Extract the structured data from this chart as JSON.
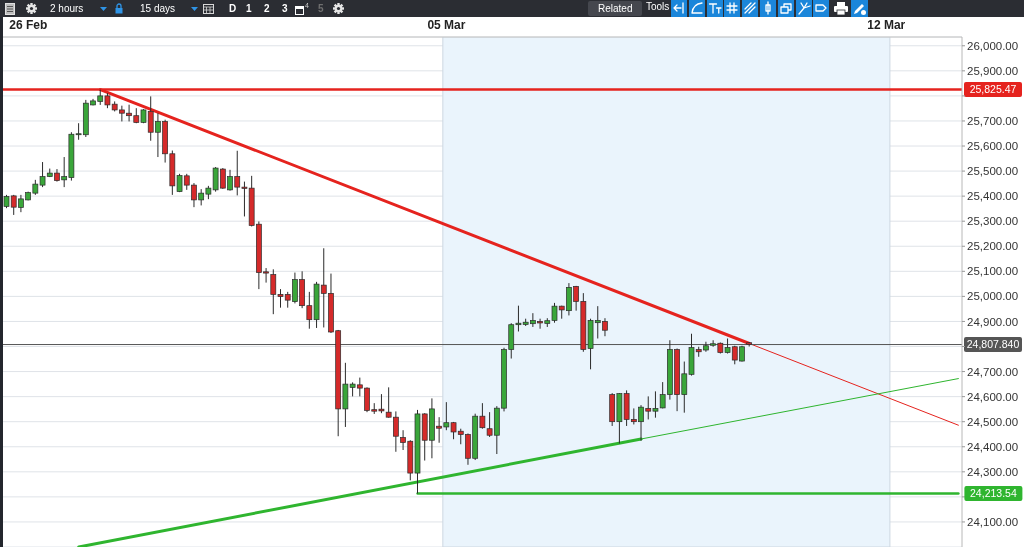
{
  "chart_data": {
    "type": "candlestick",
    "categories": [
      null,
      null,
      null,
      "26 Feb",
      null,
      null,
      null,
      null,
      null,
      null,
      null,
      null,
      null,
      null,
      null,
      null,
      null,
      null,
      null,
      null,
      null,
      null,
      null,
      null,
      null,
      null,
      null,
      null,
      null,
      null,
      null,
      null,
      null,
      null,
      null,
      null,
      null,
      null,
      null,
      null,
      null,
      null,
      null,
      null,
      null,
      null,
      null,
      null,
      null,
      null,
      null,
      null,
      null,
      null,
      null,
      null,
      null,
      null,
      null,
      null,
      null,
      "05 Mar",
      null,
      null,
      null,
      null,
      null,
      null,
      null,
      null,
      null,
      null,
      null,
      null,
      null,
      null,
      null,
      null,
      null,
      null,
      null,
      null,
      null,
      null,
      null,
      null,
      null,
      null,
      null,
      null,
      null,
      null,
      null,
      null,
      null,
      null,
      null,
      null,
      null,
      null,
      null,
      null,
      null,
      null,
      null,
      null,
      null,
      null,
      null,
      null,
      null,
      null,
      null,
      null,
      null,
      null,
      null,
      null,
      null,
      null,
      null,
      null,
      "12 Mar",
      null,
      null,
      null,
      null,
      null,
      null,
      null,
      null,
      null,
      null
    ],
    "ohlc": [
      [
        25359,
        25405,
        25352,
        25399
      ],
      [
        25401,
        25405,
        25325,
        25356
      ],
      [
        25355,
        25405,
        25336,
        25389
      ],
      [
        25385,
        25418,
        25383,
        25414
      ],
      [
        25412,
        25465,
        25405,
        25448
      ],
      [
        25444,
        25536,
        25436,
        25478
      ],
      [
        25478,
        25510,
        25476,
        25492
      ],
      [
        25492,
        25508,
        25458,
        25462
      ],
      [
        25465,
        25556,
        25436,
        25478
      ],
      [
        25474,
        25655,
        25462,
        25647
      ],
      [
        25646,
        25691,
        25625,
        25649
      ],
      [
        25645,
        25784,
        25636,
        25771
      ],
      [
        25764,
        25788,
        25762,
        25780
      ],
      [
        25778,
        25825,
        25764,
        25800
      ],
      [
        25800,
        25811,
        25751,
        25764
      ],
      [
        25767,
        25778,
        25738,
        25744
      ],
      [
        25744,
        25761,
        25698,
        25731
      ],
      [
        25731,
        25765,
        25698,
        25721
      ],
      [
        25721,
        25751,
        25691,
        25694
      ],
      [
        25694,
        25747,
        25691,
        25744
      ],
      [
        25738,
        25798,
        25621,
        25655
      ],
      [
        25655,
        25731,
        25556,
        25698
      ],
      [
        25698,
        25705,
        25534,
        25569
      ],
      [
        25569,
        25582,
        25405,
        25441
      ],
      [
        25418,
        25489,
        25416,
        25482
      ],
      [
        25481,
        25489,
        25425,
        25444
      ],
      [
        25444,
        25452,
        25356,
        25385
      ],
      [
        25385,
        25428,
        25363,
        25412
      ],
      [
        25408,
        25441,
        25388,
        25432
      ],
      [
        25425,
        25516,
        25418,
        25512
      ],
      [
        25508,
        25512,
        25429,
        25432
      ],
      [
        25425,
        25505,
        25422,
        25478
      ],
      [
        25478,
        25581,
        25403,
        25436
      ],
      [
        25436,
        25458,
        25319,
        25431
      ],
      [
        25432,
        25481,
        25279,
        25283
      ],
      [
        25288,
        25299,
        25029,
        25095
      ],
      [
        25098,
        25113,
        25055,
        25093
      ],
      [
        25087,
        25108,
        24929,
        25008
      ],
      [
        25008,
        25029,
        24955,
        24999
      ],
      [
        25008,
        25018,
        24955,
        24985
      ],
      [
        24979,
        25095,
        24972,
        25067
      ],
      [
        25067,
        25100,
        24953,
        24963
      ],
      [
        24963,
        25018,
        24871,
        24907
      ],
      [
        24907,
        25058,
        24874,
        25049
      ],
      [
        25045,
        25192,
        24876,
        25012
      ],
      [
        25012,
        25091,
        24854,
        24858
      ],
      [
        24863,
        24866,
        24442,
        24551
      ],
      [
        24551,
        24735,
        24479,
        24650
      ],
      [
        24637,
        24657,
        24601,
        24650
      ],
      [
        24647,
        24676,
        24601,
        24634
      ],
      [
        24634,
        24637,
        24538,
        24545
      ],
      [
        24548,
        24574,
        24531,
        24542
      ],
      [
        24550,
        24610,
        24534,
        24543
      ],
      [
        24538,
        24637,
        24516,
        24518
      ],
      [
        24518,
        24541,
        24380,
        24442
      ],
      [
        24437,
        24466,
        24387,
        24417
      ],
      [
        24422,
        24426,
        24266,
        24295
      ],
      [
        24295,
        24547,
        24213.54,
        24531
      ],
      [
        24531,
        24534,
        24345,
        24426
      ],
      [
        24426,
        24593,
        24354,
        24551
      ],
      [
        24482,
        24518,
        24416,
        24474
      ],
      [
        24479,
        24578,
        24466,
        24496
      ],
      [
        24496,
        24499,
        24430,
        24459
      ],
      [
        24462,
        24472,
        24410,
        24449
      ],
      [
        24449,
        24453,
        24328,
        24354
      ],
      [
        24354,
        24532,
        24347,
        24522
      ],
      [
        24522,
        24574,
        24472,
        24476
      ],
      [
        24472,
        24538,
        24439,
        24446
      ],
      [
        24446,
        24562,
        24371,
        24554
      ],
      [
        24554,
        24795,
        24541,
        24788
      ],
      [
        24788,
        24893,
        24752,
        24887
      ],
      [
        24887,
        24963,
        24860,
        24893
      ],
      [
        24888,
        24911,
        24882,
        24897
      ],
      [
        24891,
        24933,
        24878,
        24904
      ],
      [
        24900,
        24911,
        24871,
        24894
      ],
      [
        24892,
        24913,
        24878,
        24903
      ],
      [
        24904,
        24974,
        24895,
        24961
      ],
      [
        24961,
        24963,
        24911,
        24946
      ],
      [
        24943,
        25053,
        24924,
        25036
      ],
      [
        25040,
        25042,
        24943,
        24980
      ],
      [
        24980,
        25013,
        24779,
        24788
      ],
      [
        24792,
        24911,
        24709,
        24904
      ],
      [
        24895,
        24961,
        24832,
        24904
      ],
      [
        24900,
        24913,
        24841,
        24865
      ],
      [
        24608,
        24614,
        24483,
        24500
      ],
      [
        24500,
        24614,
        24413,
        24612
      ],
      [
        24612,
        24625,
        24483,
        24509
      ],
      [
        24509,
        24553,
        24489,
        24500
      ],
      [
        24500,
        24566,
        24424,
        24558
      ],
      [
        24553,
        24601,
        24509,
        24542
      ],
      [
        24542,
        24621,
        24516,
        24553
      ],
      [
        24555,
        24658,
        24553,
        24608
      ],
      [
        24608,
        24825,
        24588,
        24788
      ],
      [
        24788,
        24792,
        24542,
        24608
      ],
      [
        24608,
        24740,
        24536,
        24691
      ],
      [
        24689,
        24851,
        24684,
        24796
      ],
      [
        24788,
        24799,
        24759,
        24779
      ],
      [
        24786,
        24819,
        24779,
        24803
      ],
      [
        24805,
        24825,
        24799,
        24811
      ],
      [
        24813,
        24816,
        24772,
        24776
      ],
      [
        24776,
        24832,
        24772,
        24796
      ],
      [
        24799,
        24803,
        24729,
        24746
      ],
      [
        24742,
        24803,
        24740,
        24799
      ],
      [
        24815,
        24818,
        24800,
        24807.84
      ],
      null,
      null,
      null,
      null,
      null,
      null,
      null,
      null,
      null,
      null,
      null,
      null,
      null,
      null,
      null,
      null,
      null,
      null,
      null,
      null,
      null,
      null,
      null,
      null,
      null,
      null,
      null,
      null,
      null
    ],
    "series": [
      {
        "type": "line",
        "color": "#e5231e",
        "values": [
          null,
          null,
          null,
          null,
          null,
          null,
          null,
          null,
          null,
          null,
          null,
          null,
          null,
          25825,
          null,
          null,
          null,
          null,
          null,
          null,
          null,
          null,
          null,
          null,
          null,
          null,
          null,
          null,
          null,
          null,
          null,
          null,
          null,
          null,
          null,
          null,
          null,
          null,
          null,
          null,
          null,
          null,
          null,
          null,
          null,
          null,
          null,
          null,
          null,
          null,
          null,
          null,
          null,
          null,
          null,
          null,
          null,
          null,
          null,
          null,
          null,
          null,
          null,
          null,
          null,
          null,
          null,
          null,
          null,
          null,
          null,
          null,
          null,
          null,
          null,
          null,
          null,
          null,
          null,
          null,
          null,
          null,
          null,
          null,
          null,
          null,
          null,
          null,
          null,
          null,
          null,
          null,
          null,
          null,
          null,
          null,
          null,
          null,
          null,
          null,
          null,
          null,
          null,
          24812,
          null,
          null,
          null,
          null,
          null,
          null,
          null,
          null,
          null,
          null,
          null,
          null,
          null,
          null,
          null,
          null,
          null,
          null,
          null,
          null,
          null,
          null,
          null,
          null,
          null,
          null,
          null,
          null,
          null
        ]
      },
      {
        "type": "line",
        "color": "#e5231e",
        "values": [
          null,
          null,
          null,
          null,
          null,
          null,
          null,
          null,
          null,
          null,
          null,
          null,
          null,
          null,
          null,
          null,
          null,
          null,
          null,
          null,
          null,
          null,
          null,
          null,
          null,
          null,
          null,
          null,
          null,
          null,
          null,
          null,
          null,
          null,
          null,
          null,
          null,
          null,
          null,
          null,
          null,
          null,
          null,
          null,
          null,
          null,
          null,
          null,
          null,
          null,
          null,
          null,
          null,
          null,
          null,
          null,
          null,
          null,
          null,
          null,
          null,
          null,
          null,
          null,
          null,
          null,
          null,
          null,
          null,
          null,
          null,
          null,
          null,
          null,
          null,
          null,
          null,
          null,
          null,
          null,
          null,
          null,
          null,
          null,
          null,
          null,
          null,
          null,
          null,
          null,
          null,
          null,
          null,
          null,
          null,
          null,
          null,
          null,
          null,
          null,
          null,
          null,
          null,
          24812,
          null,
          null,
          null,
          null,
          null,
          null,
          null,
          null,
          null,
          null,
          null,
          null,
          null,
          null,
          null,
          null,
          null,
          null,
          null,
          null,
          null,
          null,
          null,
          null,
          null,
          null,
          null,
          null,
          24486
        ]
      },
      {
        "type": "line",
        "color": "#2fb52f",
        "values": [
          null,
          null,
          null,
          null,
          null,
          null,
          null,
          null,
          null,
          null,
          24000,
          null,
          null,
          null,
          null,
          null,
          null,
          null,
          null,
          null,
          null,
          null,
          null,
          null,
          null,
          null,
          null,
          null,
          null,
          null,
          null,
          null,
          null,
          null,
          null,
          null,
          null,
          null,
          null,
          null,
          null,
          null,
          null,
          null,
          null,
          null,
          null,
          null,
          null,
          null,
          null,
          null,
          null,
          null,
          null,
          null,
          null,
          null,
          null,
          null,
          null,
          null,
          null,
          null,
          null,
          null,
          null,
          null,
          null,
          null,
          null,
          null,
          null,
          null,
          null,
          null,
          null,
          null,
          null,
          null,
          null,
          null,
          null,
          null,
          null,
          null,
          null,
          null,
          24431,
          null,
          null,
          null,
          null,
          null,
          null,
          null,
          null,
          null,
          null,
          null,
          null,
          null,
          null,
          null,
          null,
          null,
          null,
          null,
          null,
          null,
          null,
          null,
          null,
          null,
          null,
          null,
          null,
          null,
          null,
          null,
          null,
          null,
          null,
          null,
          null,
          null,
          null,
          null,
          null,
          null,
          null,
          null,
          null
        ]
      },
      {
        "type": "line",
        "color": "#2fb52f",
        "values": [
          null,
          null,
          null,
          null,
          null,
          null,
          null,
          null,
          null,
          null,
          null,
          null,
          null,
          null,
          null,
          null,
          null,
          null,
          null,
          null,
          null,
          null,
          null,
          null,
          null,
          null,
          null,
          null,
          null,
          null,
          null,
          null,
          null,
          null,
          null,
          null,
          null,
          null,
          null,
          null,
          null,
          null,
          null,
          null,
          null,
          null,
          null,
          null,
          null,
          null,
          null,
          null,
          null,
          null,
          null,
          null,
          null,
          null,
          null,
          null,
          null,
          null,
          null,
          null,
          null,
          null,
          null,
          null,
          null,
          null,
          null,
          null,
          null,
          null,
          null,
          null,
          null,
          null,
          null,
          null,
          null,
          null,
          null,
          null,
          null,
          null,
          null,
          null,
          24431,
          null,
          null,
          null,
          null,
          null,
          null,
          null,
          null,
          null,
          null,
          null,
          null,
          null,
          null,
          null,
          null,
          null,
          null,
          null,
          null,
          null,
          null,
          null,
          null,
          null,
          null,
          null,
          null,
          null,
          null,
          null,
          null,
          null,
          null,
          null,
          null,
          null,
          null,
          null,
          null,
          null,
          null,
          null,
          24672
        ]
      },
      {
        "type": "line",
        "name": "24,213.54",
        "color": "#2fb52f",
        "values": [
          null,
          null,
          null,
          null,
          null,
          null,
          null,
          null,
          null,
          null,
          null,
          null,
          null,
          null,
          null,
          null,
          null,
          null,
          null,
          null,
          null,
          null,
          null,
          null,
          null,
          null,
          null,
          null,
          null,
          null,
          null,
          null,
          null,
          null,
          null,
          null,
          null,
          null,
          null,
          null,
          null,
          null,
          null,
          null,
          null,
          null,
          null,
          null,
          null,
          null,
          null,
          null,
          null,
          null,
          null,
          null,
          null,
          24213.54,
          null,
          null,
          null,
          null,
          null,
          null,
          null,
          null,
          null,
          null,
          null,
          null,
          null,
          null,
          null,
          null,
          null,
          null,
          null,
          null,
          null,
          null,
          null,
          null,
          null,
          null,
          null,
          null,
          null,
          null,
          null,
          null,
          null,
          null,
          null,
          null,
          null,
          null,
          null,
          null,
          null,
          null,
          null,
          null,
          null,
          null,
          null,
          null,
          null,
          null,
          null,
          null,
          null,
          null,
          null,
          null,
          null,
          null,
          null,
          null,
          null,
          null,
          null,
          null,
          null,
          null,
          null,
          null,
          null,
          null,
          null,
          null,
          null,
          null,
          24213.54
        ]
      }
    ],
    "ylim": [
      24000,
      26035
    ],
    "yticks": [
      {
        "value": 24100,
        "label": "24,100.00"
      },
      {
        "value": 24200,
        "label": null
      },
      {
        "value": 24300,
        "label": "24,300.00"
      },
      {
        "value": 24400,
        "label": "24,400.00"
      },
      {
        "value": 24500,
        "label": "24,500.00"
      },
      {
        "value": 24600,
        "label": "24,600.00"
      },
      {
        "value": 24700,
        "label": "24,700.00"
      },
      {
        "value": 24800,
        "label": null
      },
      {
        "value": 24900,
        "label": "24,900.00"
      },
      {
        "value": 25000,
        "label": "25,000.00"
      },
      {
        "value": 25100,
        "label": "25,100.00"
      },
      {
        "value": 25200,
        "label": "25,200.00"
      },
      {
        "value": 25300,
        "label": "25,300.00"
      },
      {
        "value": 25400,
        "label": "25,400.00"
      },
      {
        "value": 25500,
        "label": "25,500.00"
      },
      {
        "value": 25600,
        "label": "25,600.00"
      },
      {
        "value": 25700,
        "label": "25,700.00"
      },
      {
        "value": 25800,
        "label": null
      },
      {
        "value": 25900,
        "label": "25,900.00"
      },
      {
        "value": 26000,
        "label": "26,000.00"
      }
    ],
    "grid": "y",
    "ref_lines": [
      {
        "axis": "y",
        "value": 25825.47,
        "label": "25,825.47",
        "color": "#e5231e"
      },
      {
        "axis": "y",
        "value": 24807.84,
        "label": "24,807.840",
        "color": "#555555"
      }
    ],
    "bands": [
      {
        "axis": "x",
        "from": "05 Mar",
        "to": "12 Mar",
        "color": "#eaf4fc"
      }
    ],
    "annotations": [
      "2 hours",
      "15 days",
      "D",
      "1",
      "2",
      "3",
      "4",
      "5",
      "Related",
      "Tools"
    ]
  }
}
